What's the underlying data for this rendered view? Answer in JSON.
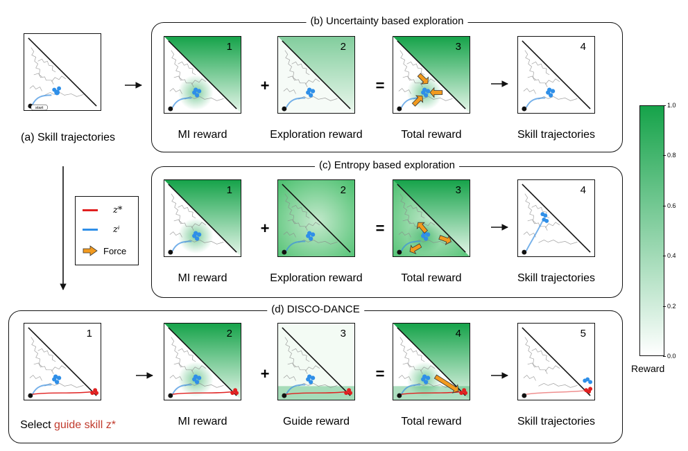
{
  "panel_a": {
    "caption": "(a) Skill trajectories",
    "start_label": "start"
  },
  "group_b": {
    "title": "(b) Uncertainty based exploration",
    "panels": [
      {
        "num": "1",
        "caption": "MI reward"
      },
      {
        "num": "2",
        "caption": "Exploration reward"
      },
      {
        "num": "3",
        "caption": "Total reward"
      },
      {
        "num": "4",
        "caption": "Skill trajectories"
      }
    ],
    "ops": [
      "+",
      "="
    ]
  },
  "group_c": {
    "title": "(c) Entropy based exploration",
    "panels": [
      {
        "num": "1",
        "caption": "MI reward"
      },
      {
        "num": "2",
        "caption": "Exploration reward"
      },
      {
        "num": "3",
        "caption": "Total reward"
      },
      {
        "num": "4",
        "caption": "Skill trajectories"
      }
    ],
    "ops": [
      "+",
      "="
    ]
  },
  "group_d": {
    "title": "(d) DISCO-DANCE",
    "select_prefix": "Select ",
    "select_guide": "guide skill z*",
    "panels": [
      {
        "num": "1",
        "caption": ""
      },
      {
        "num": "2",
        "caption": "MI reward"
      },
      {
        "num": "3",
        "caption": "Guide reward"
      },
      {
        "num": "4",
        "caption": "Total reward"
      },
      {
        "num": "5",
        "caption": "Skill trajectories"
      }
    ],
    "ops": [
      "+",
      "="
    ]
  },
  "legend": {
    "items": [
      {
        "label": "z*",
        "color": "#e02020"
      },
      {
        "label": "zⁱ",
        "color": "#2f8fe8"
      },
      {
        "label": "Force",
        "color": "#f29a1e"
      }
    ]
  },
  "colorbar": {
    "label": "Reward",
    "ticks": [
      "1.0",
      "0.8",
      "0.6",
      "0.4",
      "0.2",
      "0.0"
    ],
    "color_max": "#16a34a",
    "color_min": "#ffffff"
  },
  "colors": {
    "guide_text": "#c0392b",
    "force": "#f29a1e",
    "reward_green": "#16a34a"
  }
}
